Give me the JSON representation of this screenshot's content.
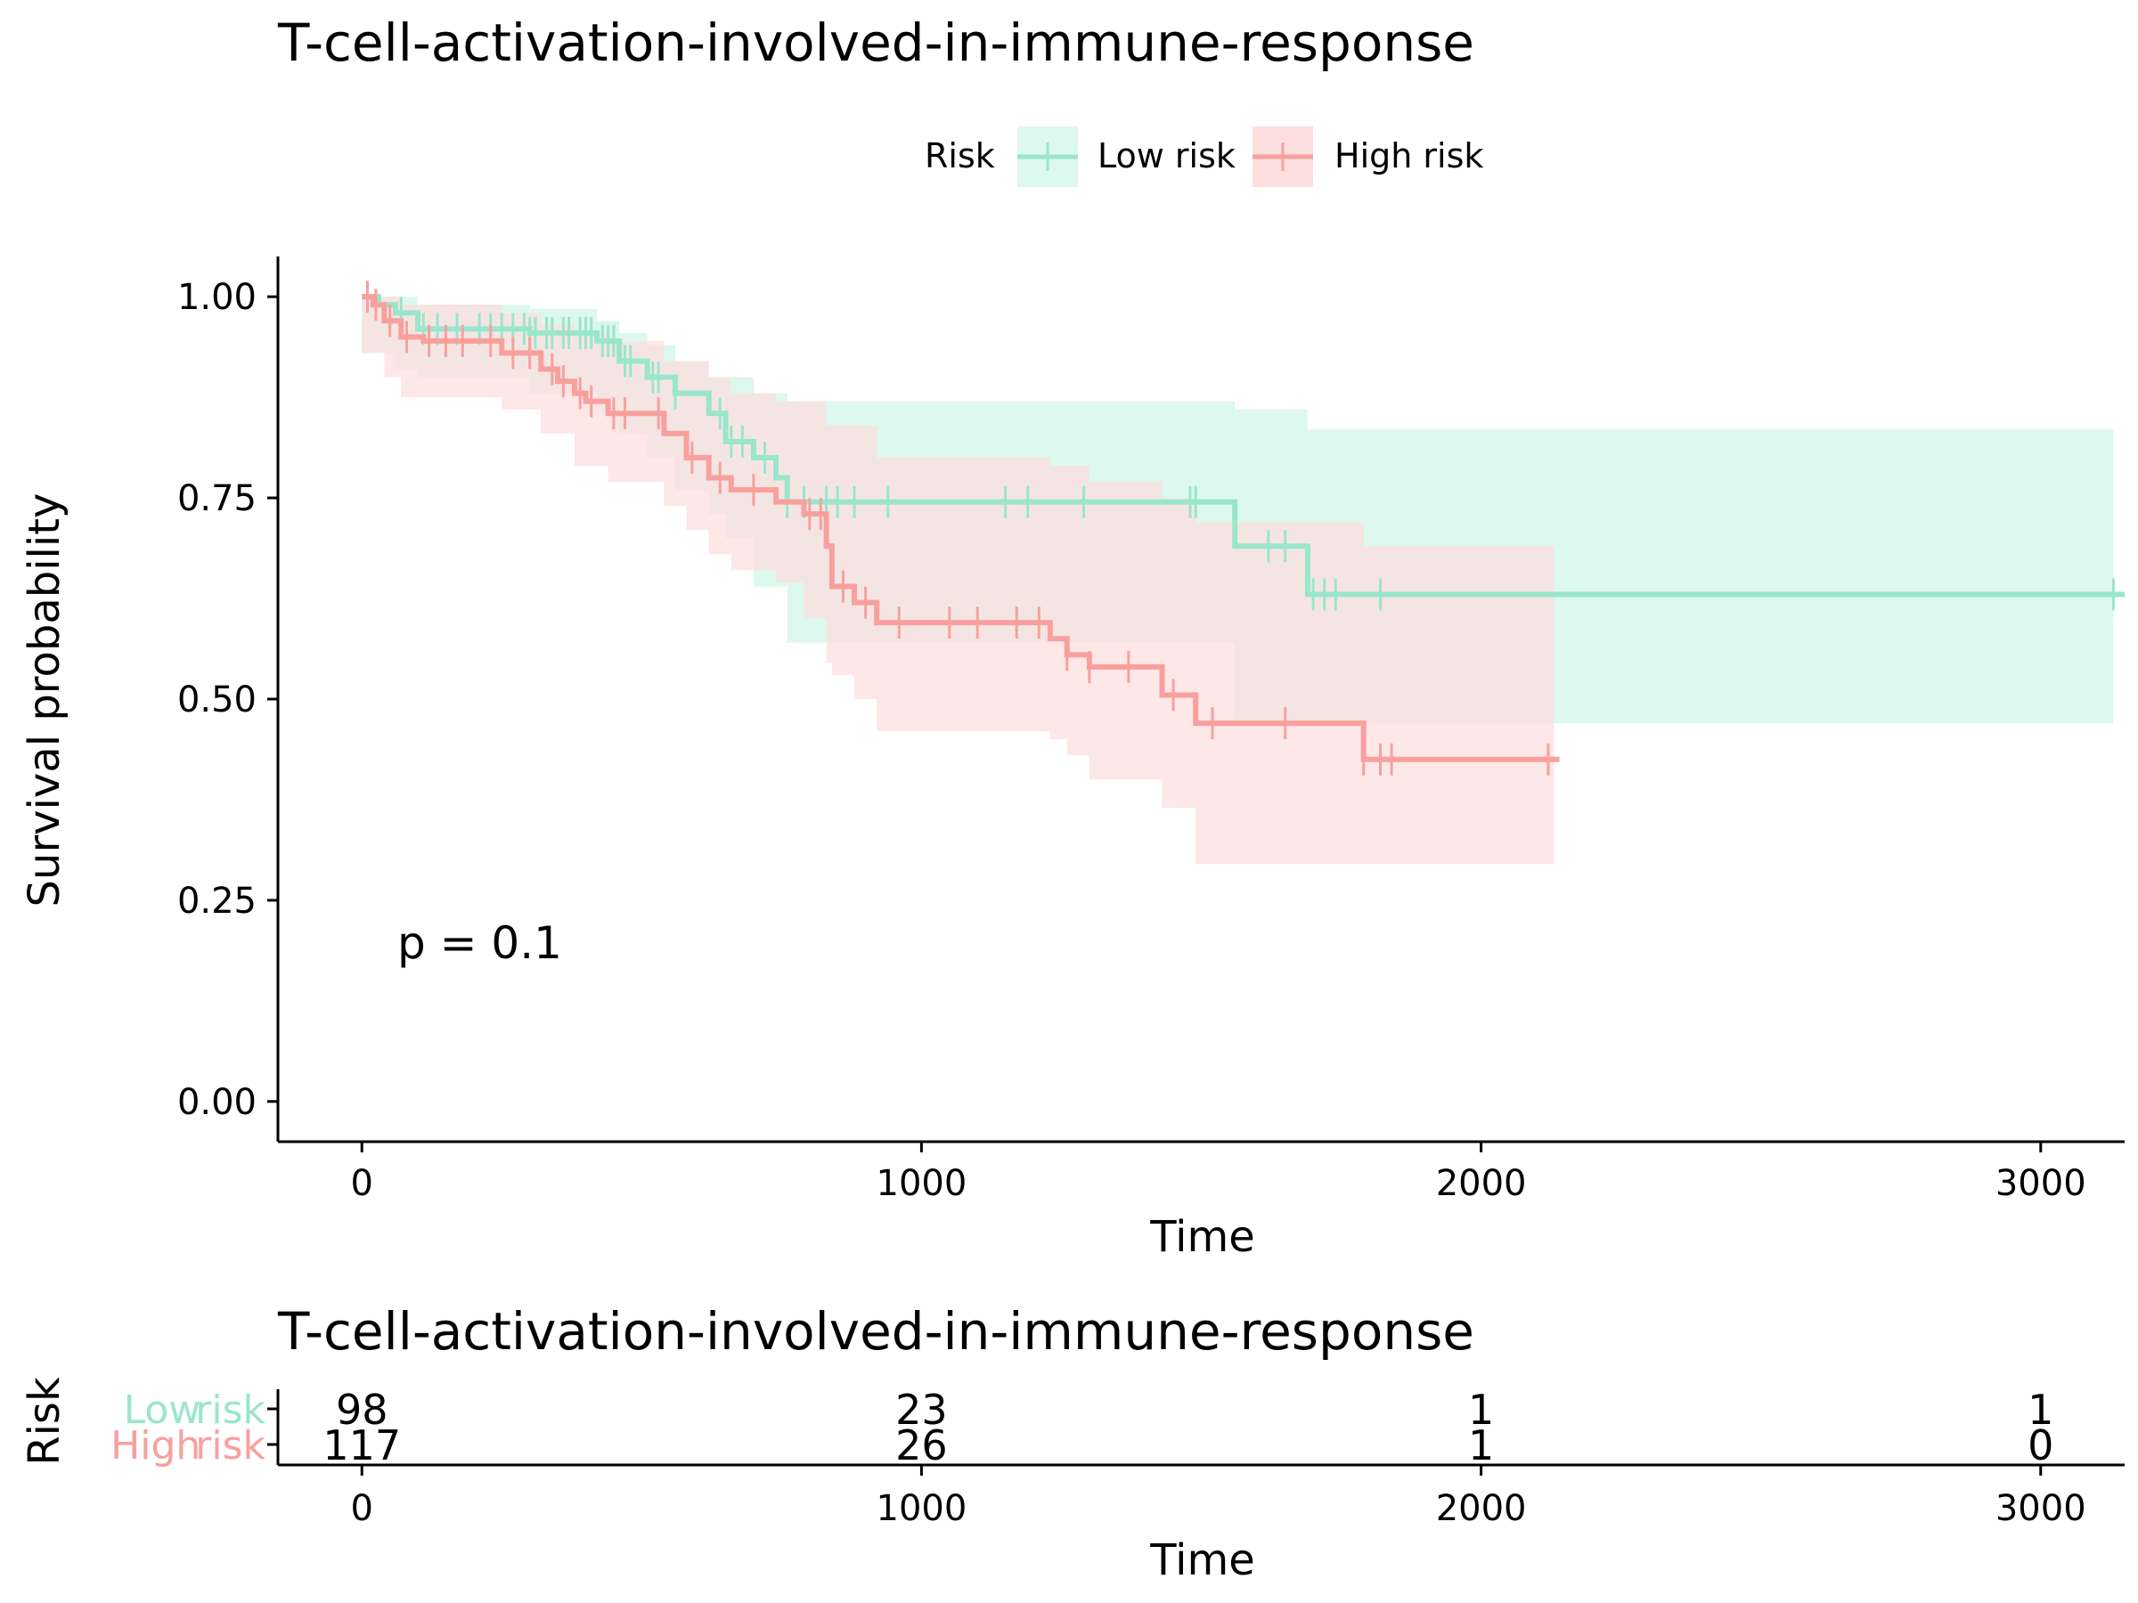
{
  "title": "T-cell-activation-involved-in-immune-response",
  "legend": {
    "title": "Risk",
    "entries": [
      "Low risk",
      "High risk"
    ]
  },
  "pvalue_text": "p = 0.1",
  "colors": {
    "low": "#99E6CC",
    "low_ci": "#DDF8EE",
    "high": "#F8A09E",
    "high_ci": "#FDDEDE",
    "overlap": "#E8DCD6"
  },
  "chart_data": [
    {
      "type": "line",
      "subtype": "kaplan-meier",
      "title": "T-cell-activation-involved-in-immune-response",
      "xlabel": "Time",
      "ylabel": "Survival probability",
      "xlim": [
        -150,
        3150
      ],
      "ylim": [
        -0.05,
        1.05
      ],
      "xticks": [
        0,
        1000,
        2000,
        3000
      ],
      "yticks": [
        0,
        0.25,
        0.5,
        0.75,
        1.0
      ],
      "ytick_labels": [
        "0.00",
        "0.25",
        "0.50",
        "0.75",
        "1.00"
      ],
      "grid": false,
      "legend_position": "top",
      "annotation": "p = 0.1",
      "series": [
        {
          "name": "Low risk",
          "color": "#99E6CC",
          "steps": [
            [
              0,
              1.0
            ],
            [
              30,
              0.99
            ],
            [
              60,
              0.98
            ],
            [
              100,
              0.96
            ],
            [
              300,
              0.955
            ],
            [
              420,
              0.945
            ],
            [
              460,
              0.92
            ],
            [
              510,
              0.9
            ],
            [
              560,
              0.88
            ],
            [
              620,
              0.855
            ],
            [
              650,
              0.82
            ],
            [
              700,
              0.8
            ],
            [
              740,
              0.775
            ],
            [
              760,
              0.745
            ],
            [
              1560,
              0.745
            ],
            [
              1560,
              0.69
            ],
            [
              1690,
              0.69
            ],
            [
              1690,
              0.63
            ],
            [
              3150,
              0.63
            ]
          ],
          "ci_upper": [
            [
              0,
              1.0
            ],
            [
              100,
              0.99
            ],
            [
              300,
              0.985
            ],
            [
              420,
              0.97
            ],
            [
              460,
              0.955
            ],
            [
              510,
              0.94
            ],
            [
              560,
              0.92
            ],
            [
              620,
              0.9
            ],
            [
              700,
              0.88
            ],
            [
              760,
              0.87
            ],
            [
              1560,
              0.86
            ],
            [
              1690,
              0.835
            ],
            [
              3130,
              0.835
            ]
          ],
          "ci_lower": [
            [
              0,
              1.0
            ],
            [
              60,
              0.93
            ],
            [
              100,
              0.91
            ],
            [
              300,
              0.9
            ],
            [
              420,
              0.88
            ],
            [
              460,
              0.86
            ],
            [
              510,
              0.83
            ],
            [
              560,
              0.8
            ],
            [
              620,
              0.76
            ],
            [
              650,
              0.73
            ],
            [
              700,
              0.7
            ],
            [
              760,
              0.64
            ],
            [
              1560,
              0.57
            ],
            [
              1690,
              0.47
            ],
            [
              3130,
              0.47
            ]
          ],
          "censor_times": [
            70,
            110,
            135,
            170,
            210,
            230,
            250,
            270,
            290,
            300,
            310,
            330,
            340,
            360,
            370,
            390,
            400,
            410,
            430,
            440,
            450,
            470,
            480,
            520,
            530,
            560,
            640,
            660,
            680,
            720,
            760,
            790,
            830,
            850,
            880,
            940,
            1150,
            1190,
            1290,
            1480,
            1490,
            1620,
            1650,
            1700,
            1720,
            1740,
            1820,
            3130
          ]
        },
        {
          "name": "High risk",
          "color": "#F8A09E",
          "steps": [
            [
              0,
              1.0
            ],
            [
              20,
              0.99
            ],
            [
              40,
              0.97
            ],
            [
              70,
              0.95
            ],
            [
              110,
              0.945
            ],
            [
              250,
              0.93
            ],
            [
              320,
              0.91
            ],
            [
              350,
              0.895
            ],
            [
              380,
              0.88
            ],
            [
              400,
              0.87
            ],
            [
              440,
              0.855
            ],
            [
              540,
              0.83
            ],
            [
              580,
              0.8
            ],
            [
              620,
              0.775
            ],
            [
              660,
              0.76
            ],
            [
              740,
              0.745
            ],
            [
              790,
              0.73
            ],
            [
              830,
              0.69
            ],
            [
              840,
              0.64
            ],
            [
              880,
              0.62
            ],
            [
              920,
              0.595
            ],
            [
              1230,
              0.575
            ],
            [
              1260,
              0.555
            ],
            [
              1300,
              0.54
            ],
            [
              1430,
              0.505
            ],
            [
              1490,
              0.47
            ],
            [
              1790,
              0.47
            ],
            [
              1790,
              0.425
            ],
            [
              2140,
              0.425
            ]
          ],
          "ci_upper": [
            [
              0,
              1.0
            ],
            [
              70,
              0.99
            ],
            [
              250,
              0.98
            ],
            [
              320,
              0.965
            ],
            [
              380,
              0.955
            ],
            [
              440,
              0.945
            ],
            [
              540,
              0.92
            ],
            [
              620,
              0.9
            ],
            [
              660,
              0.88
            ],
            [
              740,
              0.87
            ],
            [
              830,
              0.84
            ],
            [
              920,
              0.8
            ],
            [
              1230,
              0.79
            ],
            [
              1300,
              0.77
            ],
            [
              1430,
              0.75
            ],
            [
              1490,
              0.72
            ],
            [
              1790,
              0.69
            ],
            [
              2130,
              0.62
            ]
          ],
          "ci_lower": [
            [
              0,
              1.0
            ],
            [
              40,
              0.93
            ],
            [
              70,
              0.9
            ],
            [
              250,
              0.875
            ],
            [
              320,
              0.86
            ],
            [
              380,
              0.83
            ],
            [
              440,
              0.79
            ],
            [
              540,
              0.77
            ],
            [
              580,
              0.74
            ],
            [
              620,
              0.71
            ],
            [
              660,
              0.68
            ],
            [
              740,
              0.66
            ],
            [
              790,
              0.645
            ],
            [
              830,
              0.6
            ],
            [
              840,
              0.545
            ],
            [
              880,
              0.53
            ],
            [
              920,
              0.5
            ],
            [
              1230,
              0.46
            ],
            [
              1260,
              0.45
            ],
            [
              1300,
              0.43
            ],
            [
              1430,
              0.4
            ],
            [
              1490,
              0.365
            ],
            [
              1790,
              0.295
            ],
            [
              2130,
              0.295
            ]
          ],
          "censor_times": [
            10,
            25,
            50,
            80,
            120,
            150,
            180,
            230,
            270,
            300,
            340,
            360,
            390,
            410,
            450,
            470,
            530,
            590,
            640,
            700,
            800,
            820,
            860,
            900,
            960,
            1050,
            1100,
            1170,
            1210,
            1260,
            1300,
            1370,
            1450,
            1520,
            1650,
            1790,
            1820,
            1840,
            2120
          ]
        }
      ]
    },
    {
      "type": "table",
      "title": "T-cell-activation-involved-in-immune-response",
      "xlabel": "Time",
      "ylabel": "Risk",
      "xticks": [
        0,
        1000,
        2000,
        3000
      ],
      "rows": [
        {
          "label": "Low risk",
          "label_left": "Low",
          "label_right": "risk",
          "color": "#99E6CC",
          "values": [
            98,
            23,
            1,
            1
          ]
        },
        {
          "label": "High risk",
          "label_left": "High",
          "label_right": "risk",
          "color": "#F8A09E",
          "values": [
            117,
            26,
            1,
            0
          ]
        }
      ]
    }
  ]
}
